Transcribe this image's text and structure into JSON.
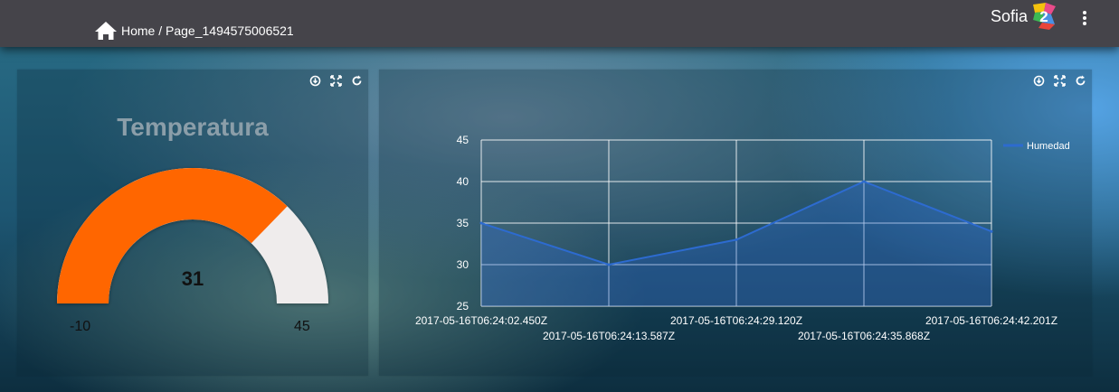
{
  "breadcrumb": {
    "text": "Home / Page_1494575006521"
  },
  "brand": {
    "name": "Sofia",
    "logo_text": "2"
  },
  "gauge": {
    "title": "Temperatura",
    "value": 31,
    "min": -10,
    "max": 45,
    "min_label": "-10",
    "max_label": "45",
    "value_label": "31",
    "fill_color": "#ff6600",
    "track_color": "#efecec"
  },
  "chart_data": {
    "type": "area",
    "title": "",
    "xlabel": "",
    "ylabel": "",
    "ylim": [
      25,
      45
    ],
    "yticks": [
      "45",
      "40",
      "35",
      "30",
      "25"
    ],
    "x": [
      "2017-05-16T06:24:02.450Z",
      "2017-05-16T06:24:13.587Z",
      "2017-05-16T06:24:29.120Z",
      "2017-05-16T06:24:35.868Z",
      "2017-05-16T06:24:42.201Z"
    ],
    "series": [
      {
        "name": "Humedad",
        "values": [
          35,
          30,
          33,
          40,
          34
        ],
        "color": "#2d6bd0"
      }
    ],
    "grid": true,
    "legend": "top-right"
  }
}
